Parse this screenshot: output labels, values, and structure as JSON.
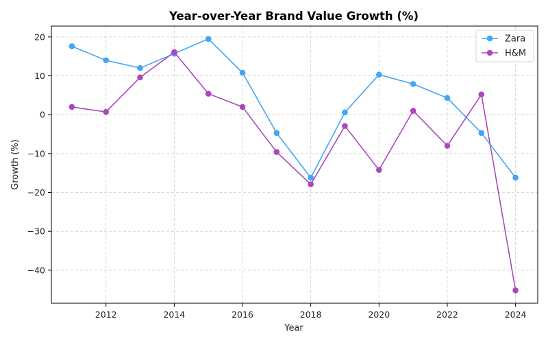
{
  "chart_data": {
    "type": "line",
    "title": "Year-over-Year Brand Value Growth (%)",
    "xlabel": "Year",
    "ylabel": "Growth (%)",
    "x": [
      2011,
      2012,
      2013,
      2014,
      2015,
      2016,
      2017,
      2018,
      2019,
      2020,
      2021,
      2022,
      2023,
      2024
    ],
    "xlim": [
      2010.4,
      2024.65
    ],
    "ylim": [
      -48.5,
      22.8
    ],
    "x_ticks": [
      2012,
      2014,
      2016,
      2018,
      2020,
      2022,
      2024
    ],
    "y_ticks": [
      20,
      10,
      0,
      -10,
      -20,
      -30,
      -40
    ],
    "y_tick_labels": [
      "20",
      "10",
      "0",
      "−10",
      "−20",
      "−30",
      "−40"
    ],
    "grid": true,
    "legend_position": "top-right",
    "series": [
      {
        "name": "Zara",
        "color": "#42a5f5",
        "values": [
          17.6,
          14.0,
          12.0,
          15.7,
          19.5,
          10.8,
          -4.7,
          -16.2,
          0.6,
          10.3,
          7.9,
          4.3,
          -4.7,
          -16.2
        ]
      },
      {
        "name": "H&M",
        "color": "#ab47bc",
        "values": [
          2.0,
          0.7,
          9.6,
          16.1,
          5.4,
          2.0,
          -9.6,
          -17.9,
          -2.9,
          -14.2,
          1.0,
          -8.0,
          5.2,
          -45.2
        ]
      }
    ]
  }
}
